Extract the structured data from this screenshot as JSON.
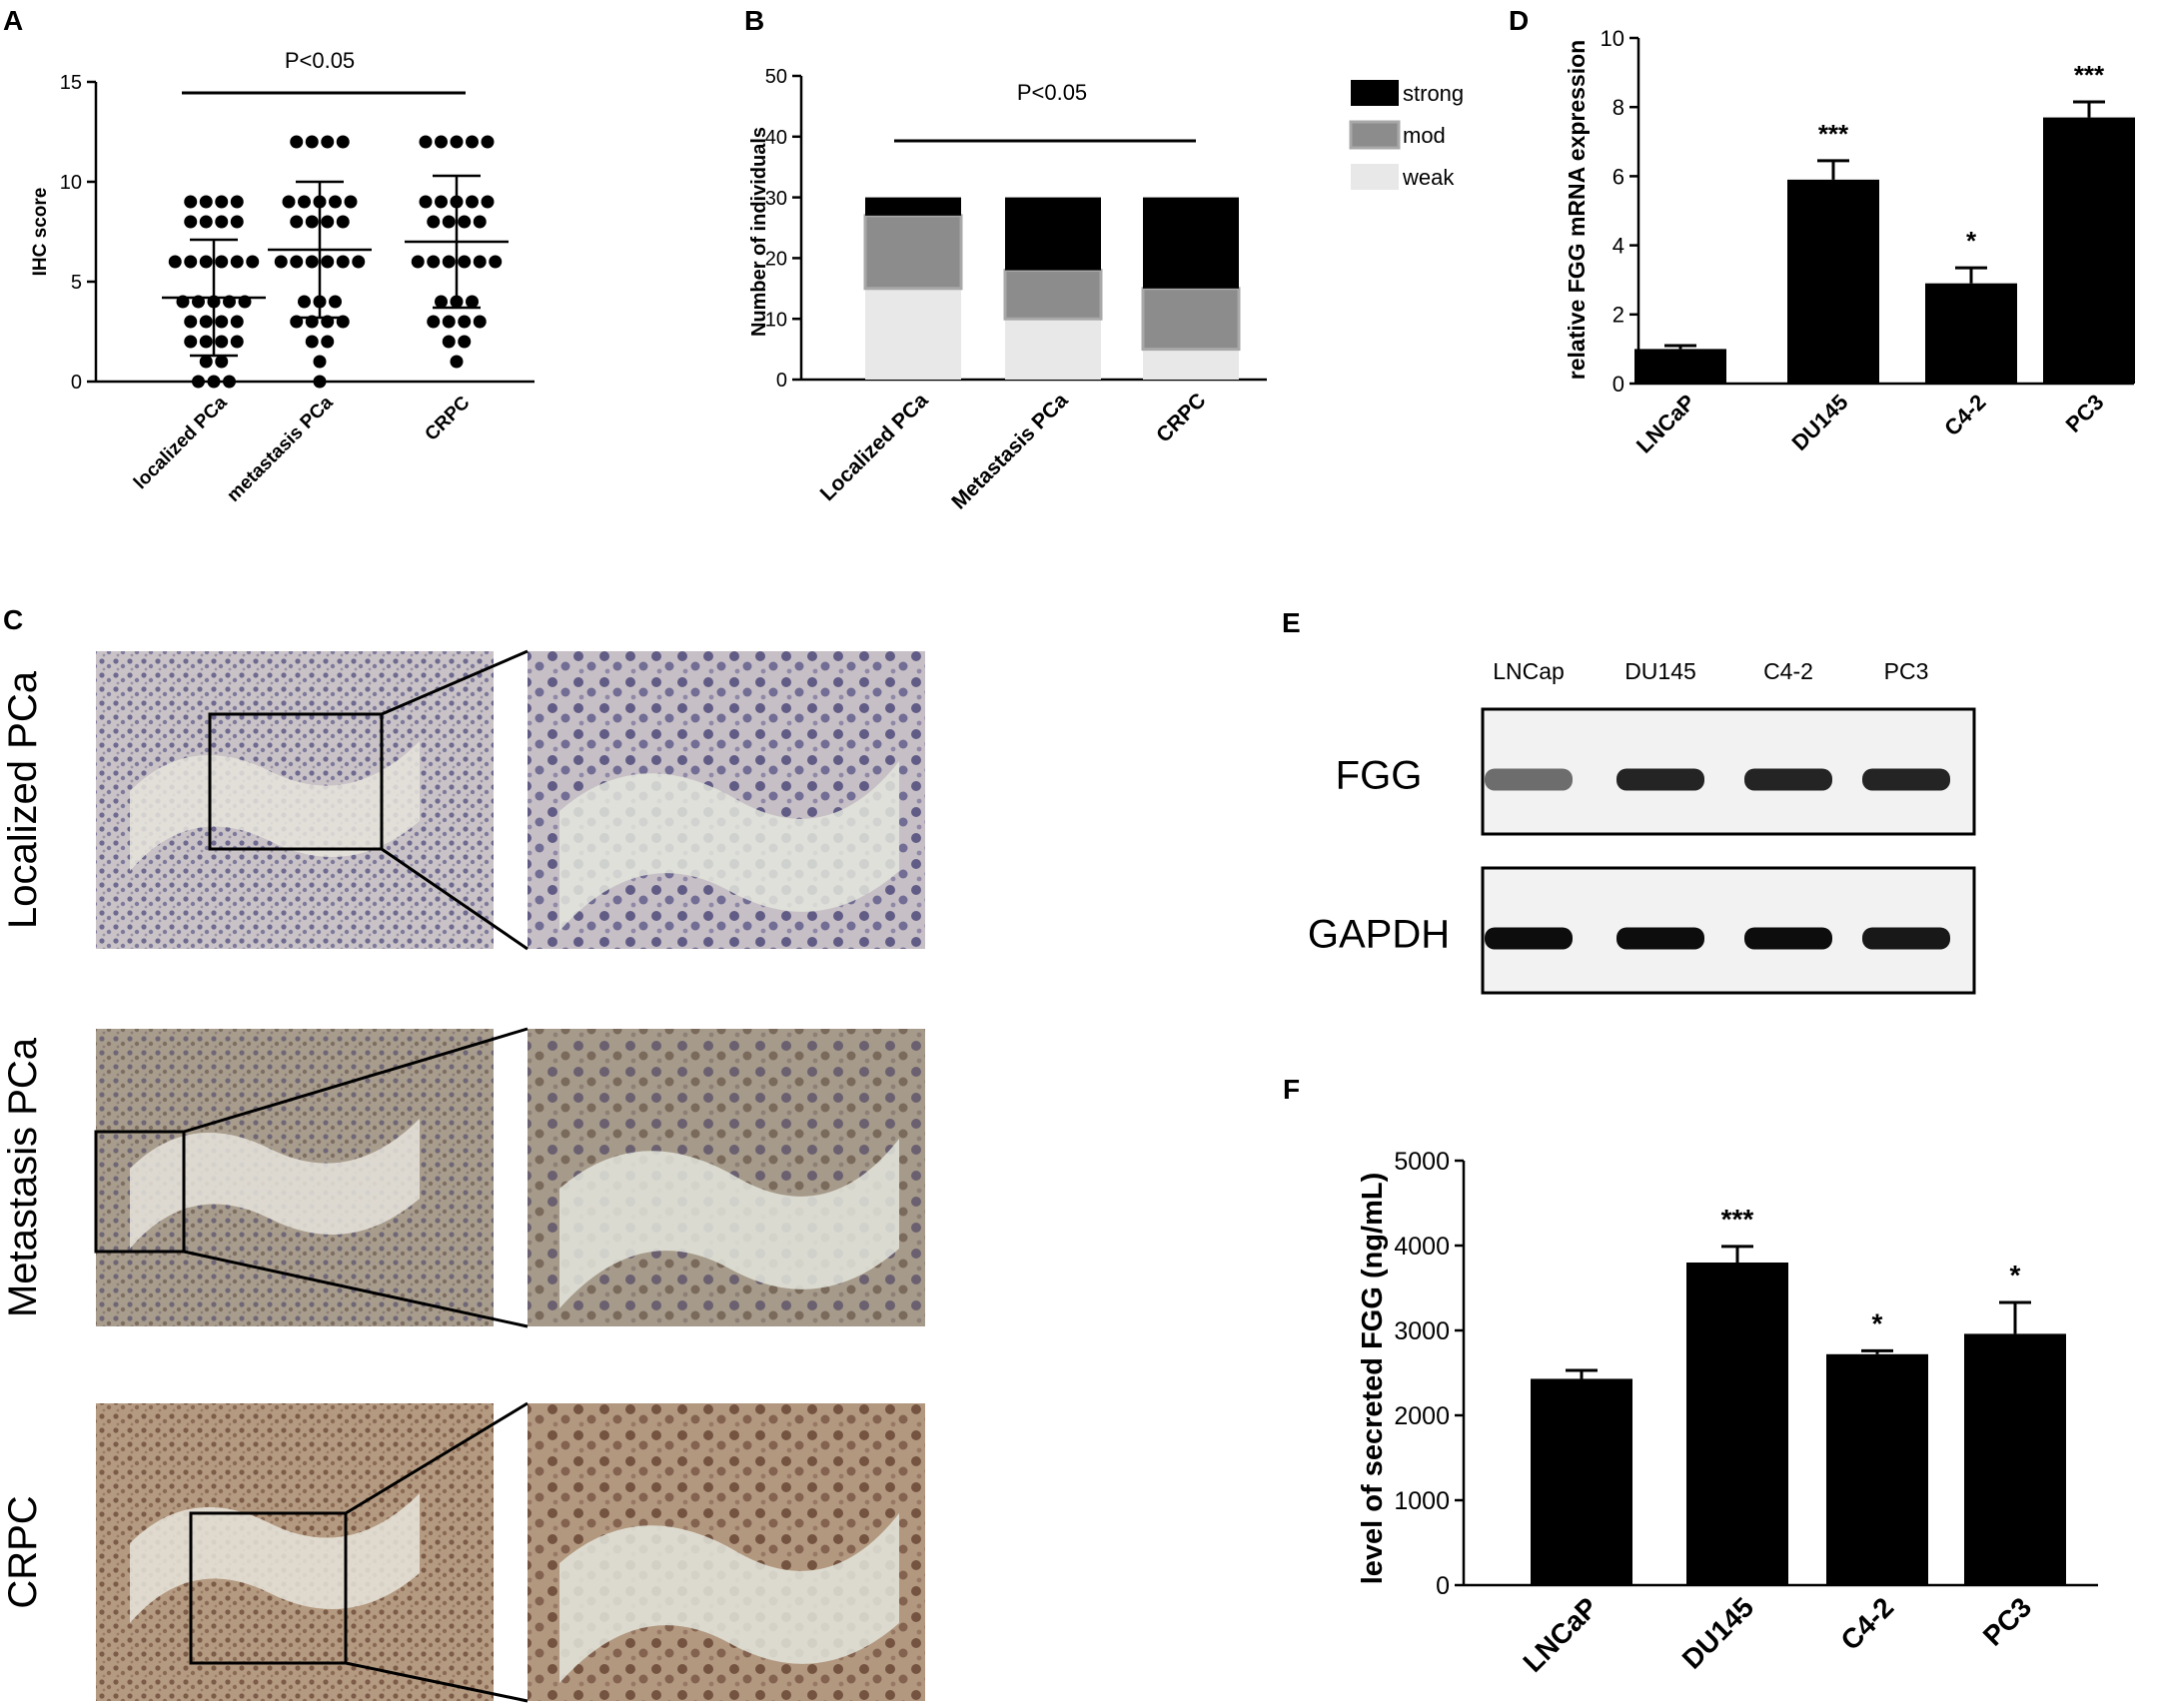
{
  "panels": {
    "A": {
      "letter": "A",
      "significance": "P<0.05",
      "chart_data": {
        "type": "scatter",
        "ylabel": "IHC score",
        "ylim": [
          0,
          15
        ],
        "yticks": [
          "0",
          "5",
          "10",
          "15"
        ],
        "yticks_values": [
          0,
          5,
          10,
          15
        ],
        "categories": [
          "localized PCa",
          "metastasis PCa",
          "CRPC"
        ],
        "groups": [
          {
            "name": "localized PCa",
            "mean": 4.2,
            "sd_upper": 7.1,
            "sd_lower": 1.3,
            "points": [
              9,
              9,
              9,
              9,
              8,
              8,
              8,
              8,
              6,
              6,
              6,
              6,
              6,
              6,
              4,
              4,
              4,
              4,
              4,
              3,
              3,
              3,
              3,
              2,
              2,
              2,
              2,
              1,
              1,
              0,
              0,
              0
            ]
          },
          {
            "name": "metastasis PCa",
            "mean": 6.6,
            "sd_upper": 10.0,
            "sd_lower": 3.2,
            "points": [
              12,
              12,
              12,
              12,
              9,
              9,
              9,
              9,
              9,
              8,
              8,
              8,
              8,
              6,
              6,
              6,
              6,
              6,
              6,
              4,
              4,
              4,
              3,
              3,
              3,
              3,
              2,
              2,
              1,
              0
            ]
          },
          {
            "name": "CRPC",
            "mean": 7.0,
            "sd_upper": 10.3,
            "sd_lower": 3.7,
            "points": [
              12,
              12,
              12,
              12,
              12,
              9,
              9,
              9,
              9,
              9,
              8,
              8,
              8,
              8,
              6,
              6,
              6,
              6,
              6,
              6,
              4,
              4,
              4,
              3,
              3,
              3,
              3,
              2,
              2,
              1
            ]
          }
        ]
      }
    },
    "B": {
      "letter": "B",
      "significance": "P<0.05",
      "chart_data": {
        "type": "bar",
        "stacked": true,
        "ylabel": "Number of individuals",
        "ylim": [
          0,
          50
        ],
        "yticks": [
          "0",
          "10",
          "20",
          "30",
          "40",
          "50"
        ],
        "yticks_values": [
          0,
          10,
          20,
          30,
          40,
          50
        ],
        "categories": [
          "Localized PCa",
          "Metastasis PCa",
          "CRPC"
        ],
        "series": [
          {
            "name": "weak",
            "color": "#e8e8e8",
            "values": [
              15,
              10,
              5
            ]
          },
          {
            "name": "mod",
            "color": "#8c8c8c",
            "values": [
              12,
              8,
              10
            ]
          },
          {
            "name": "strong",
            "color": "#000000",
            "values": [
              3,
              12,
              15
            ]
          }
        ],
        "legend": [
          "strong",
          "mod",
          "weak"
        ],
        "legend_position": "right"
      }
    },
    "D": {
      "letter": "D",
      "chart_data": {
        "type": "bar",
        "ylabel": "relative FGG mRNA expression",
        "ylim": [
          0,
          10
        ],
        "yticks": [
          "0",
          "2",
          "4",
          "6",
          "8",
          "10"
        ],
        "yticks_values": [
          0,
          2,
          4,
          6,
          8,
          10
        ],
        "categories": [
          "LNCaP",
          "DU145",
          "C4-2",
          "PC3"
        ],
        "values": [
          1.0,
          5.9,
          2.9,
          7.7
        ],
        "errors": [
          0.1,
          0.55,
          0.45,
          0.45
        ],
        "annotations": [
          "",
          "***",
          "*",
          "***"
        ],
        "color": "#000000"
      }
    },
    "C": {
      "letter": "C",
      "rows": [
        {
          "label": "Localized PCa",
          "tone": "blue"
        },
        {
          "label": "Metastasis PCa",
          "tone": "mixed"
        },
        {
          "label": "CRPC",
          "tone": "brown"
        }
      ]
    },
    "E": {
      "letter": "E",
      "lanes": [
        "LNCap",
        "DU145",
        "C4-2",
        "PC3"
      ],
      "blots": [
        {
          "label": "FGG",
          "intensity": [
            0.55,
            0.85,
            0.85,
            0.85
          ]
        },
        {
          "label": "GAPDH",
          "intensity": [
            0.95,
            0.95,
            0.95,
            0.9
          ]
        }
      ]
    },
    "F": {
      "letter": "F",
      "chart_data": {
        "type": "bar",
        "ylabel": "level of secreted FGG (ng/mL)",
        "ylim": [
          0,
          5000
        ],
        "yticks": [
          "0",
          "1000",
          "2000",
          "3000",
          "4000",
          "5000"
        ],
        "yticks_values": [
          0,
          1000,
          2000,
          3000,
          4000,
          5000
        ],
        "categories": [
          "LNCaP",
          "DU145",
          "C4-2",
          "PC3"
        ],
        "values": [
          2430,
          3800,
          2720,
          2960
        ],
        "errors": [
          100,
          190,
          40,
          370
        ],
        "annotations": [
          "",
          "***",
          "*",
          "*"
        ],
        "color": "#000000"
      }
    }
  }
}
